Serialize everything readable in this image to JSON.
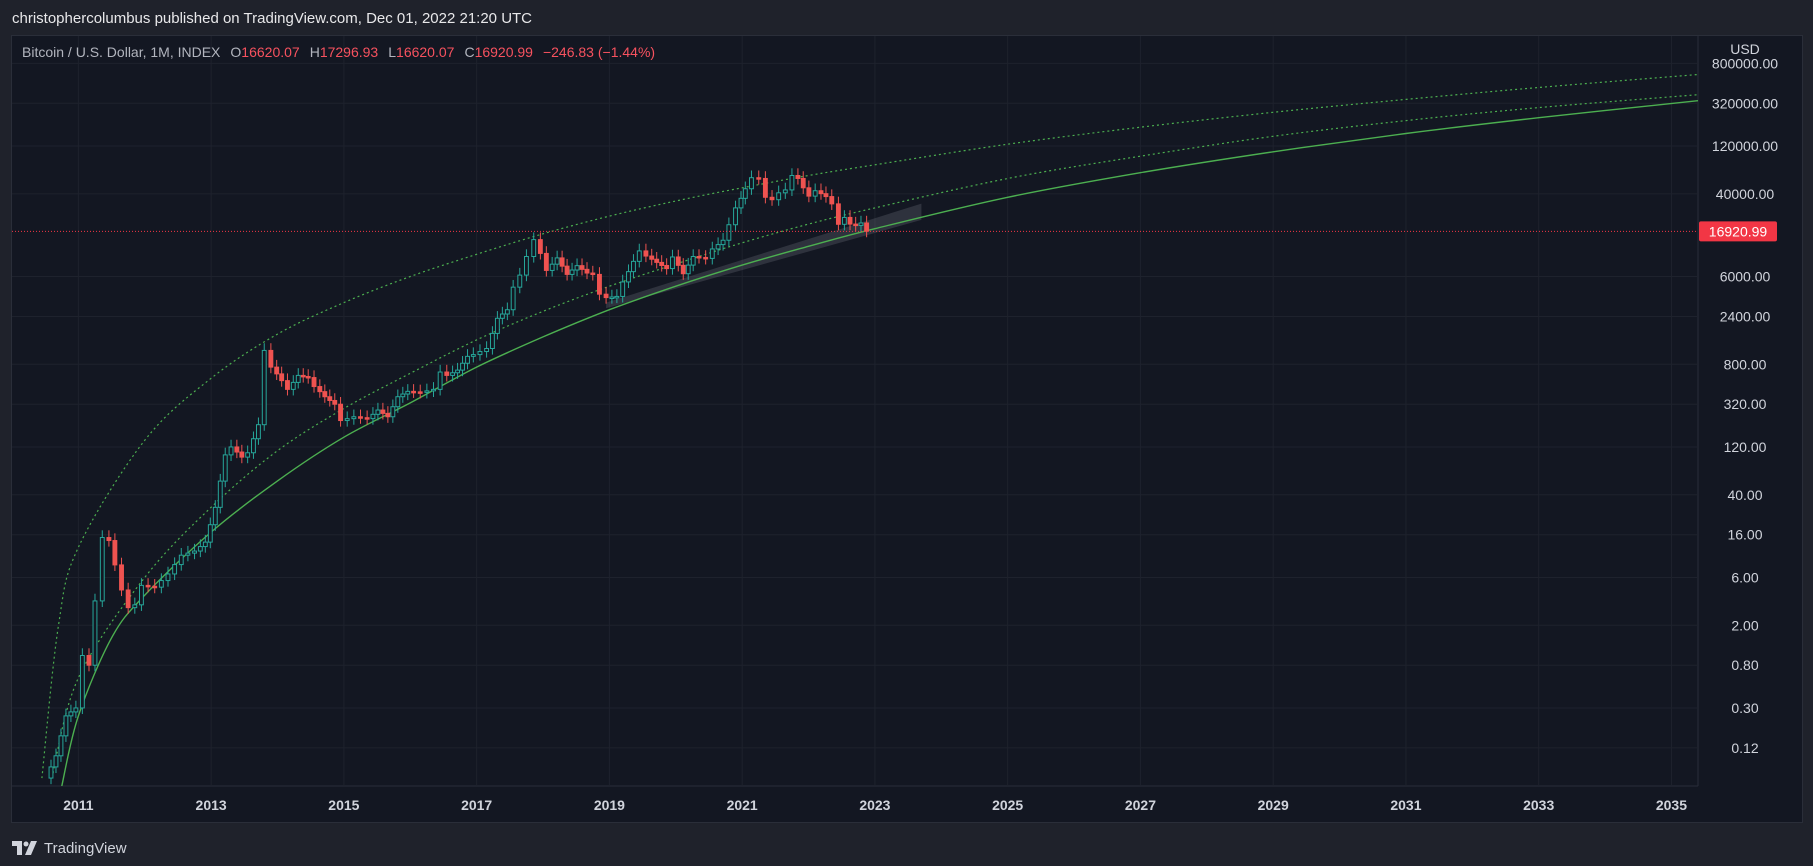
{
  "header": {
    "published_text": "christophercolumbus published on TradingView.com, Dec 01, 2022 21:20 UTC"
  },
  "legend": {
    "symbol": "Bitcoin / U.S. Dollar, 1M, INDEX",
    "open_label": "O",
    "open": "16620.07",
    "high_label": "H",
    "high": "17296.93",
    "low_label": "L",
    "low": "16620.07",
    "close_label": "C",
    "close": "16920.99",
    "change": "−246.83 (−1.44%)"
  },
  "footer": {
    "brand": "TradingView"
  },
  "colors": {
    "background": "#131722",
    "up": "#26a69a",
    "down": "#ef5350",
    "curve": "#4caf50",
    "price_line": "#f23645"
  },
  "chart_data": {
    "type": "candlestick",
    "currency": "USD",
    "last_price_label": "16920.99",
    "scale": "log",
    "grid": true,
    "x_ticks": [
      "2011",
      "2013",
      "2015",
      "2017",
      "2019",
      "2021",
      "2023",
      "2025",
      "2027",
      "2029",
      "2031",
      "2033",
      "2035"
    ],
    "y_ticks": [
      {
        "label": "800000.00",
        "value": 800000
      },
      {
        "label": "320000.00",
        "value": 320000
      },
      {
        "label": "120000.00",
        "value": 120000
      },
      {
        "label": "40000.00",
        "value": 40000
      },
      {
        "label": "6000.00",
        "value": 6000
      },
      {
        "label": "2400.00",
        "value": 2400
      },
      {
        "label": "800.00",
        "value": 800
      },
      {
        "label": "320.00",
        "value": 320
      },
      {
        "label": "120.00",
        "value": 120
      },
      {
        "label": "40.00",
        "value": 40
      },
      {
        "label": "16.00",
        "value": 16
      },
      {
        "label": "6.00",
        "value": 6
      },
      {
        "label": "2.00",
        "value": 2
      },
      {
        "label": "0.80",
        "value": 0.8
      },
      {
        "label": "0.30",
        "value": 0.3
      },
      {
        "label": "0.12",
        "value": 0.12
      }
    ],
    "ylim": [
      0.05,
      1500000
    ],
    "xlim": [
      2010.0,
      2035.4
    ],
    "price_series": [
      [
        2010.55,
        0.06
      ],
      [
        2010.7,
        0.1
      ],
      [
        2010.85,
        0.25
      ],
      [
        2011.0,
        0.3
      ],
      [
        2011.12,
        1.0
      ],
      [
        2011.2,
        0.8
      ],
      [
        2011.3,
        3.5
      ],
      [
        2011.42,
        15
      ],
      [
        2011.5,
        14
      ],
      [
        2011.6,
        8
      ],
      [
        2011.7,
        4.5
      ],
      [
        2011.8,
        3
      ],
      [
        2011.9,
        3.2
      ],
      [
        2012.0,
        5
      ],
      [
        2012.2,
        4.8
      ],
      [
        2012.4,
        6.5
      ],
      [
        2012.6,
        10
      ],
      [
        2012.8,
        11
      ],
      [
        2012.95,
        13.5
      ],
      [
        2013.1,
        30
      ],
      [
        2013.25,
        100
      ],
      [
        2013.35,
        120
      ],
      [
        2013.5,
        95
      ],
      [
        2013.6,
        105
      ],
      [
        2013.75,
        200
      ],
      [
        2013.85,
        1100
      ],
      [
        2013.95,
        750
      ],
      [
        2014.1,
        550
      ],
      [
        2014.2,
        450
      ],
      [
        2014.35,
        620
      ],
      [
        2014.5,
        590
      ],
      [
        2014.6,
        480
      ],
      [
        2014.75,
        380
      ],
      [
        2014.9,
        320
      ],
      [
        2015.0,
        220
      ],
      [
        2015.2,
        240
      ],
      [
        2015.4,
        230
      ],
      [
        2015.55,
        280
      ],
      [
        2015.7,
        240
      ],
      [
        2015.85,
        380
      ],
      [
        2016.0,
        430
      ],
      [
        2016.2,
        420
      ],
      [
        2016.4,
        450
      ],
      [
        2016.5,
        670
      ],
      [
        2016.6,
        620
      ],
      [
        2016.75,
        700
      ],
      [
        2016.9,
        960
      ],
      [
        2017.0,
        1000
      ],
      [
        2017.2,
        1150
      ],
      [
        2017.35,
        2300
      ],
      [
        2017.5,
        2800
      ],
      [
        2017.6,
        4700
      ],
      [
        2017.7,
        6200
      ],
      [
        2017.8,
        9500
      ],
      [
        2017.92,
        14000
      ],
      [
        2018.0,
        10200
      ],
      [
        2018.1,
        6900
      ],
      [
        2018.25,
        9200
      ],
      [
        2018.4,
        6300
      ],
      [
        2018.55,
        7700
      ],
      [
        2018.7,
        6500
      ],
      [
        2018.8,
        6300
      ],
      [
        2018.9,
        4000
      ],
      [
        2019.0,
        3700
      ],
      [
        2019.15,
        3800
      ],
      [
        2019.25,
        5300
      ],
      [
        2019.4,
        8500
      ],
      [
        2019.5,
        10800
      ],
      [
        2019.6,
        9600
      ],
      [
        2019.75,
        8300
      ],
      [
        2019.9,
        7200
      ],
      [
        2020.0,
        9400
      ],
      [
        2020.15,
        6400
      ],
      [
        2020.3,
        9500
      ],
      [
        2020.5,
        9100
      ],
      [
        2020.6,
        11300
      ],
      [
        2020.75,
        13800
      ],
      [
        2020.85,
        19700
      ],
      [
        2020.95,
        29000
      ],
      [
        2021.08,
        45000
      ],
      [
        2021.2,
        58000
      ],
      [
        2021.3,
        57000
      ],
      [
        2021.4,
        37000
      ],
      [
        2021.5,
        35000
      ],
      [
        2021.6,
        41000
      ],
      [
        2021.7,
        43800
      ],
      [
        2021.8,
        61000
      ],
      [
        2021.88,
        57000
      ],
      [
        2021.96,
        46000
      ],
      [
        2022.05,
        38000
      ],
      [
        2022.15,
        43000
      ],
      [
        2022.3,
        37600
      ],
      [
        2022.4,
        31800
      ],
      [
        2022.5,
        19900
      ],
      [
        2022.58,
        23300
      ],
      [
        2022.67,
        20000
      ],
      [
        2022.75,
        19400
      ],
      [
        2022.83,
        20500
      ],
      [
        2022.92,
        17000
      ]
    ],
    "base_curve": [
      [
        2010.75,
        0.05
      ],
      [
        2011.0,
        0.25
      ],
      [
        2011.5,
        1.5
      ],
      [
        2012.0,
        4
      ],
      [
        2013.0,
        17
      ],
      [
        2014.0,
        55
      ],
      [
        2015.0,
        150
      ],
      [
        2016.0,
        330
      ],
      [
        2017.0,
        750
      ],
      [
        2018.0,
        1500
      ],
      [
        2019.0,
        2800
      ],
      [
        2020.0,
        4800
      ],
      [
        2021.0,
        7800
      ],
      [
        2022.0,
        12000
      ],
      [
        2023.0,
        18000
      ],
      [
        2025.0,
        37000
      ],
      [
        2027.0,
        65000
      ],
      [
        2029.0,
        105000
      ],
      [
        2031.0,
        160000
      ],
      [
        2033.0,
        230000
      ],
      [
        2035.4,
        340000
      ]
    ],
    "middle_curve": [
      [
        2010.6,
        0.06
      ],
      [
        2011.0,
        0.6
      ],
      [
        2012.0,
        6
      ],
      [
        2013.0,
        30
      ],
      [
        2014.0,
        110
      ],
      [
        2015.0,
        290
      ],
      [
        2016.0,
        650
      ],
      [
        2017.0,
        1400
      ],
      [
        2018.0,
        2700
      ],
      [
        2019.0,
        4800
      ],
      [
        2020.0,
        8000
      ],
      [
        2021.0,
        13000
      ],
      [
        2022.0,
        20000
      ],
      [
        2023.0,
        29000
      ],
      [
        2025.0,
        57000
      ],
      [
        2027.0,
        95000
      ],
      [
        2029.0,
        150000
      ],
      [
        2031.0,
        215000
      ],
      [
        2033.0,
        290000
      ],
      [
        2035.4,
        390000
      ]
    ],
    "upper_curve": [
      [
        2010.45,
        0.06
      ],
      [
        2010.7,
        2
      ],
      [
        2011.0,
        12
      ],
      [
        2012.0,
        140
      ],
      [
        2013.0,
        580
      ],
      [
        2014.0,
        1600
      ],
      [
        2015.0,
        3300
      ],
      [
        2016.0,
        6000
      ],
      [
        2017.0,
        10000
      ],
      [
        2018.0,
        16000
      ],
      [
        2019.0,
        24000
      ],
      [
        2020.0,
        34000
      ],
      [
        2021.0,
        46000
      ],
      [
        2022.0,
        61000
      ],
      [
        2023.0,
        78000
      ],
      [
        2025.0,
        125000
      ],
      [
        2027.0,
        185000
      ],
      [
        2029.0,
        260000
      ],
      [
        2031.0,
        350000
      ],
      [
        2033.0,
        460000
      ],
      [
        2035.4,
        620000
      ]
    ],
    "shaded_band": [
      [
        2018.95,
        3300
      ],
      [
        2023.7,
        32000
      ],
      [
        2023.7,
        22000
      ],
      [
        2018.95,
        2900
      ]
    ]
  }
}
